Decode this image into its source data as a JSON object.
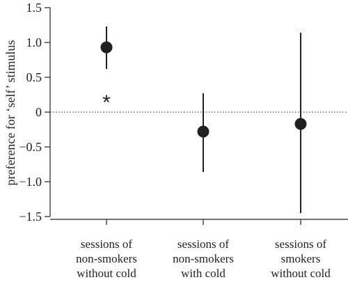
{
  "chart_data": {
    "type": "scatter",
    "title": "",
    "xlabel": "",
    "ylabel": "preference for ‘self’ stimulus",
    "ylim": [
      -1.5,
      1.5
    ],
    "yticks": [
      {
        "value": 1.5,
        "label": "1.5"
      },
      {
        "value": 1.0,
        "label": "1.0"
      },
      {
        "value": 0.5,
        "label": "0.5"
      },
      {
        "value": 0,
        "label": "0"
      },
      {
        "value": -0.5,
        "label": "−0.5"
      },
      {
        "value": -1.0,
        "label": "−1.0"
      },
      {
        "value": -1.5,
        "label": "−1.5"
      }
    ],
    "reference_line": {
      "y": 0,
      "style": "dotted"
    },
    "grid": false,
    "categories": [
      {
        "lines": [
          "sessions of",
          "non-smokers",
          "without cold"
        ]
      },
      {
        "lines": [
          "sessions of",
          "non-smokers",
          "with cold"
        ]
      },
      {
        "lines": [
          "sessions of",
          "smokers",
          "without cold"
        ]
      }
    ],
    "points": [
      {
        "value": 0.93,
        "error_low": 0.62,
        "error_high": 1.23
      },
      {
        "value": -0.28,
        "error_low": -0.86,
        "error_high": 0.27
      },
      {
        "value": -0.17,
        "error_low": -1.45,
        "error_high": 1.14
      }
    ],
    "annotations": [
      {
        "text": "*",
        "category_index": 0,
        "y": 0.22
      }
    ],
    "colors": {
      "ink": "#231f20"
    }
  }
}
